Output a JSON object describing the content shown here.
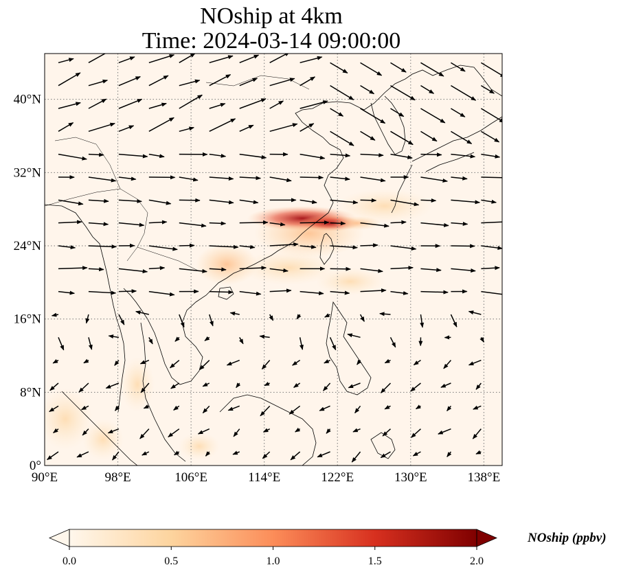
{
  "title": {
    "line1": "NOship at 4km",
    "line2": "Time: 2024-03-14 09:00:00"
  },
  "map": {
    "lon_range": [
      90,
      140
    ],
    "lat_range": [
      0,
      45
    ],
    "lon_ticks": [
      {
        "value": 90,
        "label": "90°E"
      },
      {
        "value": 98,
        "label": "98°E"
      },
      {
        "value": 106,
        "label": "106°E"
      },
      {
        "value": 114,
        "label": "114°E"
      },
      {
        "value": 122,
        "label": "122°E"
      },
      {
        "value": 130,
        "label": "130°E"
      },
      {
        "value": 138,
        "label": "138°E"
      }
    ],
    "lat_ticks": [
      {
        "value": 0,
        "label": "0°"
      },
      {
        "value": 8,
        "label": "8°N"
      },
      {
        "value": 16,
        "label": "16°N"
      },
      {
        "value": 24,
        "label": "24°N"
      },
      {
        "value": 32,
        "label": "32°N"
      },
      {
        "value": 40,
        "label": "40°N"
      }
    ],
    "grid": "dotted"
  },
  "colorbar": {
    "label": "NOship (ppbv)",
    "range": [
      0.0,
      2.0
    ],
    "extend": "both",
    "colormap": "OrRd",
    "ticks": [
      {
        "value": 0.0,
        "label": "0.0"
      },
      {
        "value": 0.5,
        "label": "0.5"
      },
      {
        "value": 1.0,
        "label": "1.0"
      },
      {
        "value": 1.5,
        "label": "1.5"
      },
      {
        "value": 2.0,
        "label": "2.0"
      }
    ]
  },
  "colors": {
    "background_field": "#fff5eb",
    "low": "#fde0c5",
    "mid": "#fc8d59",
    "high": "#b30000",
    "max": "#7f0000"
  }
}
